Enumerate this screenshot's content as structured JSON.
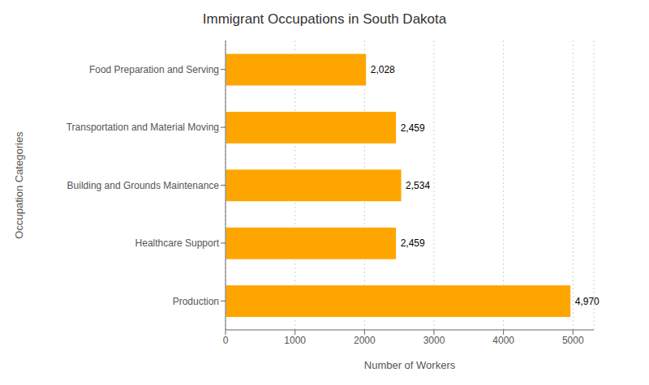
{
  "chart_data": {
    "type": "bar",
    "orientation": "horizontal",
    "title": "Immigrant Occupations in South Dakota",
    "xlabel": "Number of Workers",
    "ylabel": "Occupation Categories",
    "categories": [
      "Production",
      "Healthcare Support",
      "Building and Grounds Maintenance",
      "Transportation and Material Moving",
      "Food Preparation and Serving"
    ],
    "values": [
      4970,
      2459,
      2534,
      2459,
      2028
    ],
    "value_labels": [
      "4,970",
      "2,459",
      "2,534",
      "2,459",
      "2,028"
    ],
    "color": "#FFA500",
    "xlim": [
      0,
      5300
    ],
    "xticks": [
      0,
      1000,
      2000,
      3000,
      4000,
      5000
    ],
    "grid": true,
    "data_labels": true
  }
}
